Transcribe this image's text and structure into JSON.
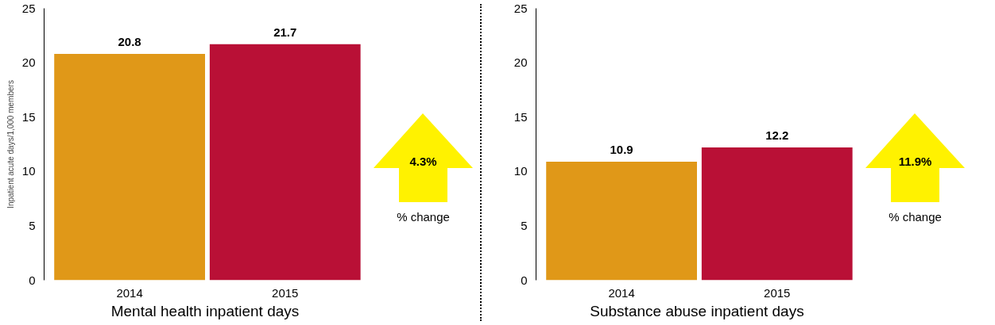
{
  "chart_data": [
    {
      "type": "bar",
      "categories": [
        "2014",
        "2015"
      ],
      "values": [
        20.8,
        21.7
      ],
      "colors": [
        "#e09818",
        "#b91036"
      ],
      "ylim": [
        0,
        25
      ],
      "yticks": [
        0,
        5,
        10,
        15,
        20,
        25
      ],
      "data_labels": true,
      "xlabel": "Mental health inpatient days",
      "ylabel": "Inpatient acute days/1,000 members",
      "annotations": [
        "4.3%",
        "% change"
      ]
    },
    {
      "type": "bar",
      "categories": [
        "2014",
        "2015"
      ],
      "values": [
        10.9,
        12.2
      ],
      "colors": [
        "#e09818",
        "#b91036"
      ],
      "ylim": [
        0,
        25
      ],
      "yticks": [
        0,
        5,
        10,
        15,
        20,
        25
      ],
      "data_labels": true,
      "xlabel": "Substance abuse inpatient days",
      "annotations": [
        "11.9%",
        "% change"
      ]
    }
  ]
}
